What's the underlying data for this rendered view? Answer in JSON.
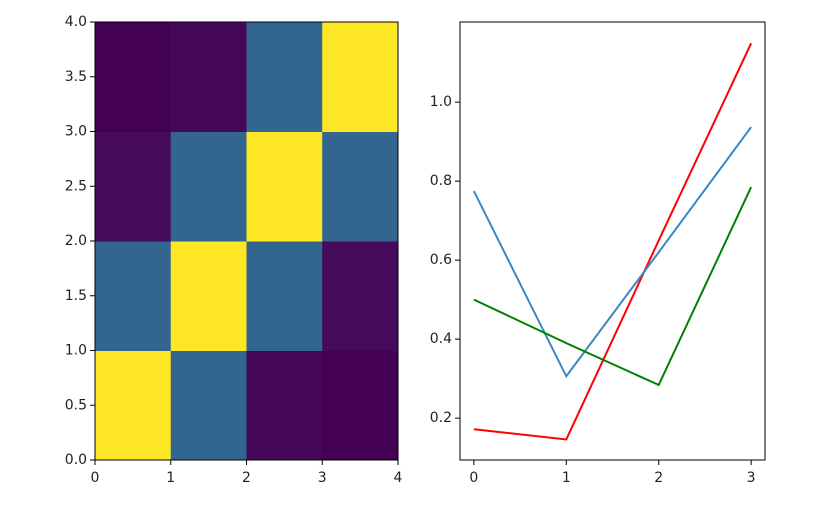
{
  "chart_data": [
    {
      "type": "heatmap",
      "colormap": "viridis",
      "z": [
        [
          1,
          0.37,
          0.02,
          0
        ],
        [
          0.37,
          1,
          0.37,
          0.03
        ],
        [
          0.03,
          0.37,
          1,
          0.37
        ],
        [
          0,
          0.02,
          0.37,
          1
        ]
      ],
      "xlim": [
        0,
        4
      ],
      "ylim": [
        0,
        4
      ],
      "xticks": [
        0,
        1,
        2,
        3,
        4
      ],
      "yticks": [
        {
          "value": 0,
          "label": "0.0"
        },
        0.5,
        {
          "value": 1,
          "label": "1.0"
        },
        1.5,
        {
          "value": 2,
          "label": "2.0"
        },
        2.5,
        {
          "value": 3,
          "label": "3.0"
        },
        3.5,
        {
          "value": 4,
          "label": "4.0"
        }
      ]
    },
    {
      "type": "line",
      "x": [
        0,
        1,
        2,
        3
      ],
      "series": [
        {
          "color": "#ff0000",
          "values": [
            0.172,
            0.146,
            0.65,
            1.149
          ]
        },
        {
          "color": "#3a87c4",
          "values": [
            0.775,
            0.306,
            0.62,
            0.937
          ]
        },
        {
          "color": "#008000",
          "values": [
            0.5,
            0.39,
            0.284,
            0.785
          ]
        }
      ],
      "xlim": [
        -0.15,
        3.15
      ],
      "ylim": [
        0.094,
        1.203
      ],
      "xticks": [
        0,
        1,
        2,
        3
      ],
      "yticks": [
        0.2,
        0.4,
        0.6,
        0.8,
        {
          "value": 1,
          "label": "1.0"
        }
      ]
    }
  ]
}
